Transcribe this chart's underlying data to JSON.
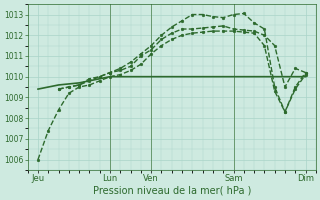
{
  "bg_color": "#ceeae0",
  "grid_color": "#aad4c8",
  "line_color": "#2d6a2d",
  "xlabel": "Pression niveau de la mer( hPa )",
  "ylim": [
    1005.5,
    1013.5
  ],
  "yticks": [
    1006,
    1007,
    1008,
    1009,
    1010,
    1011,
    1012,
    1013
  ],
  "xlim": [
    0,
    28
  ],
  "xtick_positions": [
    1,
    8,
    12,
    20,
    27
  ],
  "xtick_labels": [
    "Jeu",
    "Lun",
    "Ven",
    "Sam",
    "Dim"
  ],
  "vline_positions": [
    8,
    12,
    20
  ],
  "vline_color": "#558855",
  "lines": [
    {
      "x": [
        1,
        2,
        3,
        4,
        5,
        6,
        7,
        8,
        9,
        10,
        11,
        12,
        13,
        14,
        15,
        16,
        17,
        18,
        19,
        20,
        21,
        22,
        23,
        24,
        25,
        26,
        27
      ],
      "y": [
        1009.4,
        1009.5,
        1009.6,
        1009.65,
        1009.7,
        1009.8,
        1009.9,
        1010.0,
        1010.0,
        1010.0,
        1010.0,
        1010.0,
        1010.0,
        1010.0,
        1010.0,
        1010.0,
        1010.0,
        1010.0,
        1010.0,
        1010.0,
        1010.0,
        1010.0,
        1010.0,
        1010.0,
        1010.0,
        1010.0,
        1010.0
      ],
      "linestyle": "-",
      "linewidth": 1.2,
      "marker": null
    },
    {
      "x": [
        1,
        2,
        3,
        4,
        5,
        6,
        7,
        8,
        9,
        10,
        11,
        12,
        13,
        14,
        15,
        16,
        17,
        18,
        19,
        20,
        21,
        22,
        23,
        24,
        25,
        26,
        27
      ],
      "y": [
        1006.0,
        1007.4,
        1008.4,
        1009.2,
        1009.5,
        1009.6,
        1009.8,
        1010.0,
        1010.1,
        1010.3,
        1010.6,
        1011.1,
        1011.5,
        1011.8,
        1012.0,
        1012.1,
        1012.15,
        1012.2,
        1012.2,
        1012.2,
        1012.15,
        1012.1,
        1011.5,
        1009.3,
        1008.3,
        1009.5,
        1010.2
      ],
      "linestyle": "--",
      "linewidth": 1.0,
      "marker": "o",
      "markersize": 2.0
    },
    {
      "x": [
        3,
        4,
        5,
        6,
        7,
        8,
        9,
        10,
        11,
        12,
        13,
        14,
        15,
        16,
        17,
        18,
        19,
        20,
        21,
        22,
        23,
        24,
        25,
        26,
        27
      ],
      "y": [
        1009.4,
        1009.5,
        1009.6,
        1009.8,
        1010.0,
        1010.2,
        1010.4,
        1010.7,
        1011.1,
        1011.5,
        1012.0,
        1012.4,
        1012.7,
        1013.0,
        1013.0,
        1012.9,
        1012.85,
        1013.0,
        1013.05,
        1012.6,
        1012.3,
        1009.5,
        1008.3,
        1009.4,
        1010.1
      ],
      "linestyle": "--",
      "linewidth": 1.0,
      "marker": "o",
      "markersize": 2.0
    },
    {
      "x": [
        3,
        4,
        5,
        6,
        7,
        8,
        9,
        10,
        11,
        12,
        13,
        14,
        15,
        16,
        17,
        18,
        19,
        20,
        21,
        22,
        23,
        24,
        25,
        26,
        27
      ],
      "y": [
        1009.4,
        1009.5,
        1009.6,
        1009.9,
        1010.0,
        1010.2,
        1010.3,
        1010.5,
        1011.0,
        1011.3,
        1011.8,
        1012.1,
        1012.3,
        1012.3,
        1012.35,
        1012.4,
        1012.45,
        1012.3,
        1012.25,
        1012.2,
        1012.0,
        1011.5,
        1009.5,
        1010.4,
        1010.2
      ],
      "linestyle": "--",
      "linewidth": 1.0,
      "marker": "o",
      "markersize": 2.0
    }
  ]
}
